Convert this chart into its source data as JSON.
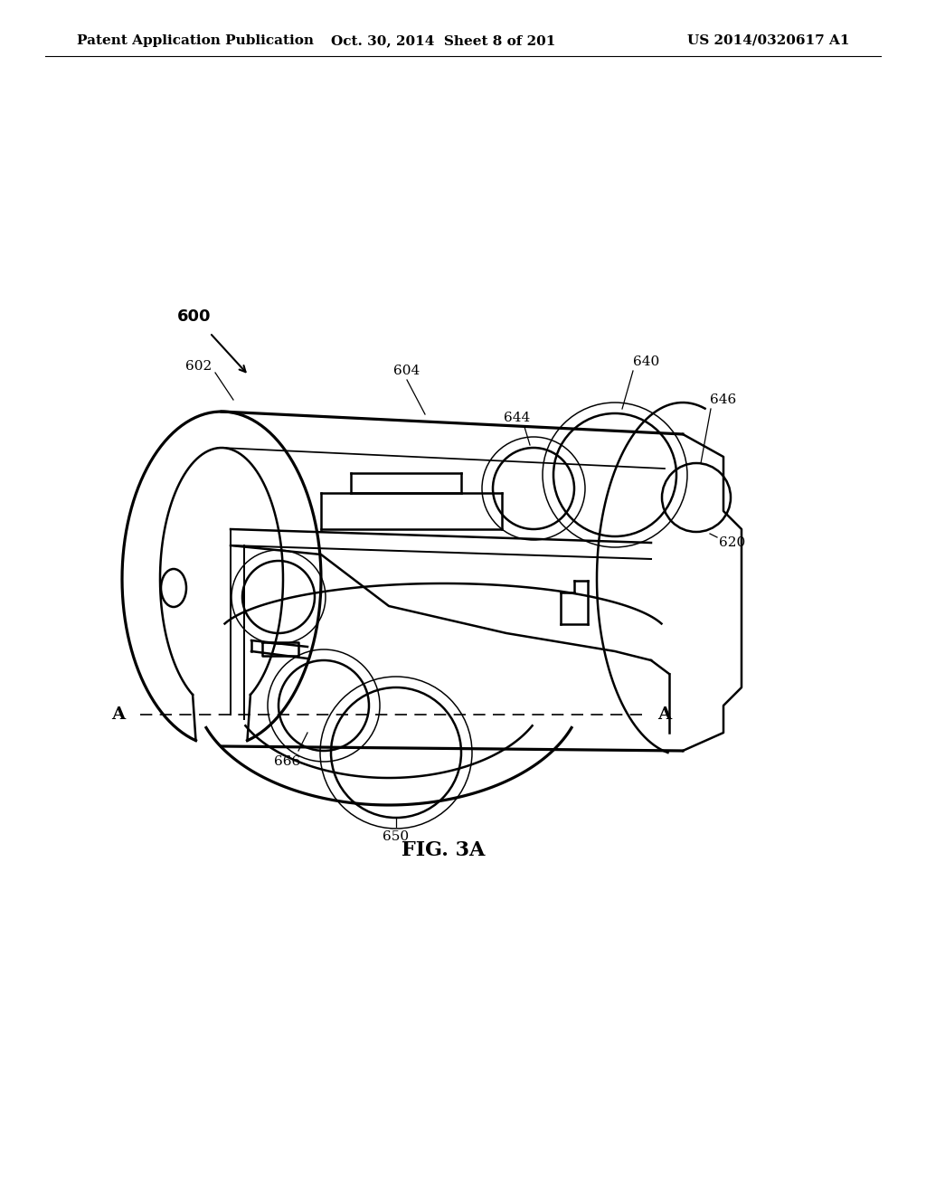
{
  "bg_color": "#ffffff",
  "lc": "#000000",
  "lw": 1.8,
  "header_left": "Patent Application Publication",
  "header_center": "Oct. 30, 2014  Sheet 8 of 201",
  "header_right": "US 2014/0320617 A1",
  "fig_label": "FIG. 3A"
}
